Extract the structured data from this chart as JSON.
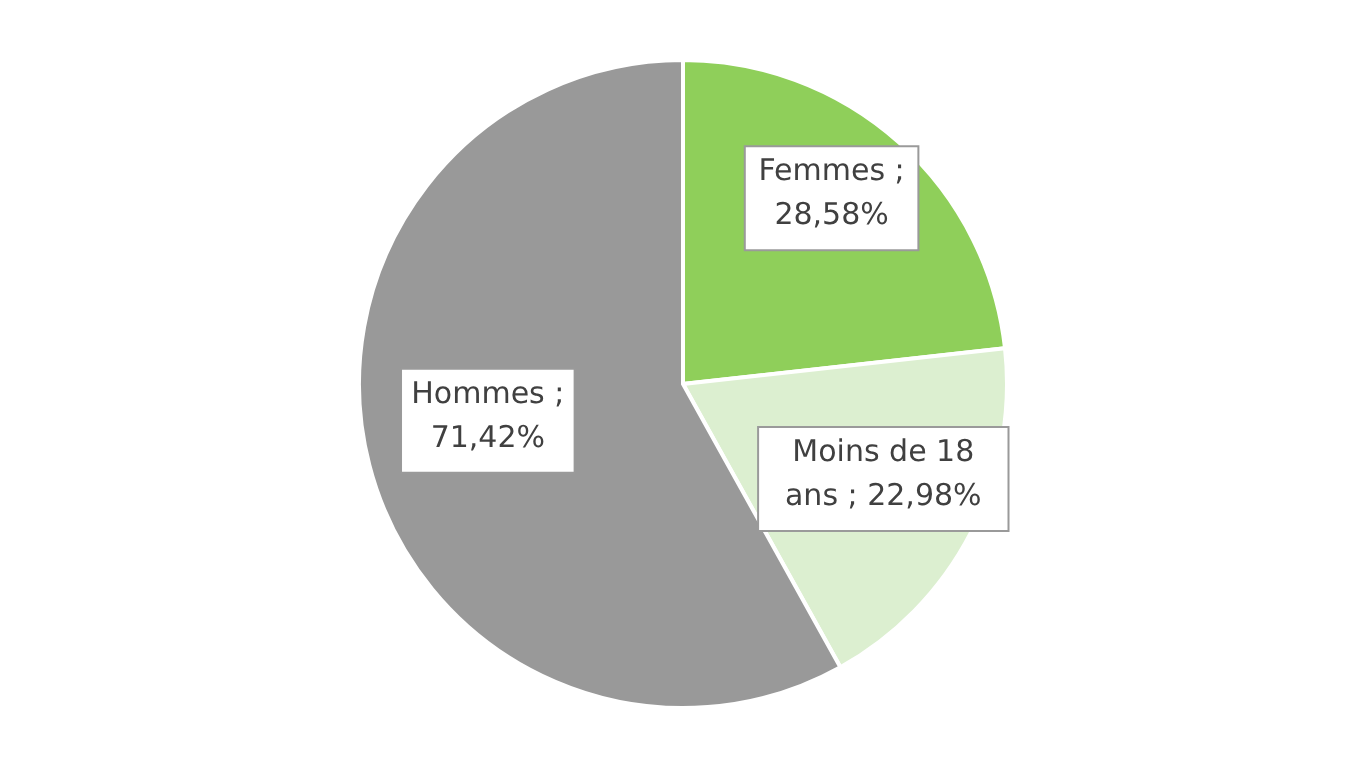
{
  "chart_data": {
    "type": "pie",
    "categories": [
      "Femmes",
      "Moins de 18 ans",
      "Hommes"
    ],
    "values": [
      28.58,
      22.98,
      71.42
    ],
    "colors": [
      "#8fcf5a",
      "#dcefd0",
      "#999999"
    ],
    "value_labels": [
      "; 28,58%",
      "; 22,98%",
      "; 71,42%"
    ]
  }
}
